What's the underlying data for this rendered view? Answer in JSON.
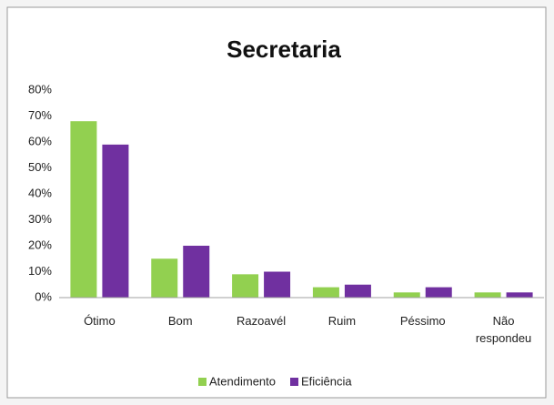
{
  "chart_data": {
    "type": "bar",
    "title": "Secretaria",
    "categories": [
      "Ótimo",
      "Bom",
      "Razoavél",
      "Ruim",
      "Péssimo",
      "Não respondeu"
    ],
    "series": [
      {
        "name": "Atendimento",
        "color": "#92d050",
        "values": [
          68,
          15,
          9,
          4,
          2,
          2
        ]
      },
      {
        "name": "Eficiência",
        "color": "#7030a0",
        "values": [
          59,
          20,
          10,
          5,
          4,
          2
        ]
      }
    ],
    "ylim": [
      0,
      80
    ],
    "yticks": [
      {
        "value": 0,
        "label": "0%"
      },
      {
        "value": 10,
        "label": "10%"
      },
      {
        "value": 20,
        "label": "20%"
      },
      {
        "value": 30,
        "label": "30%"
      },
      {
        "value": 40,
        "label": "40%"
      },
      {
        "value": 50,
        "label": "50%"
      },
      {
        "value": 60,
        "label": "60%"
      },
      {
        "value": 70,
        "label": "70%"
      },
      {
        "value": 80,
        "label": "80%"
      }
    ],
    "grid": false,
    "legend": "bottom"
  }
}
